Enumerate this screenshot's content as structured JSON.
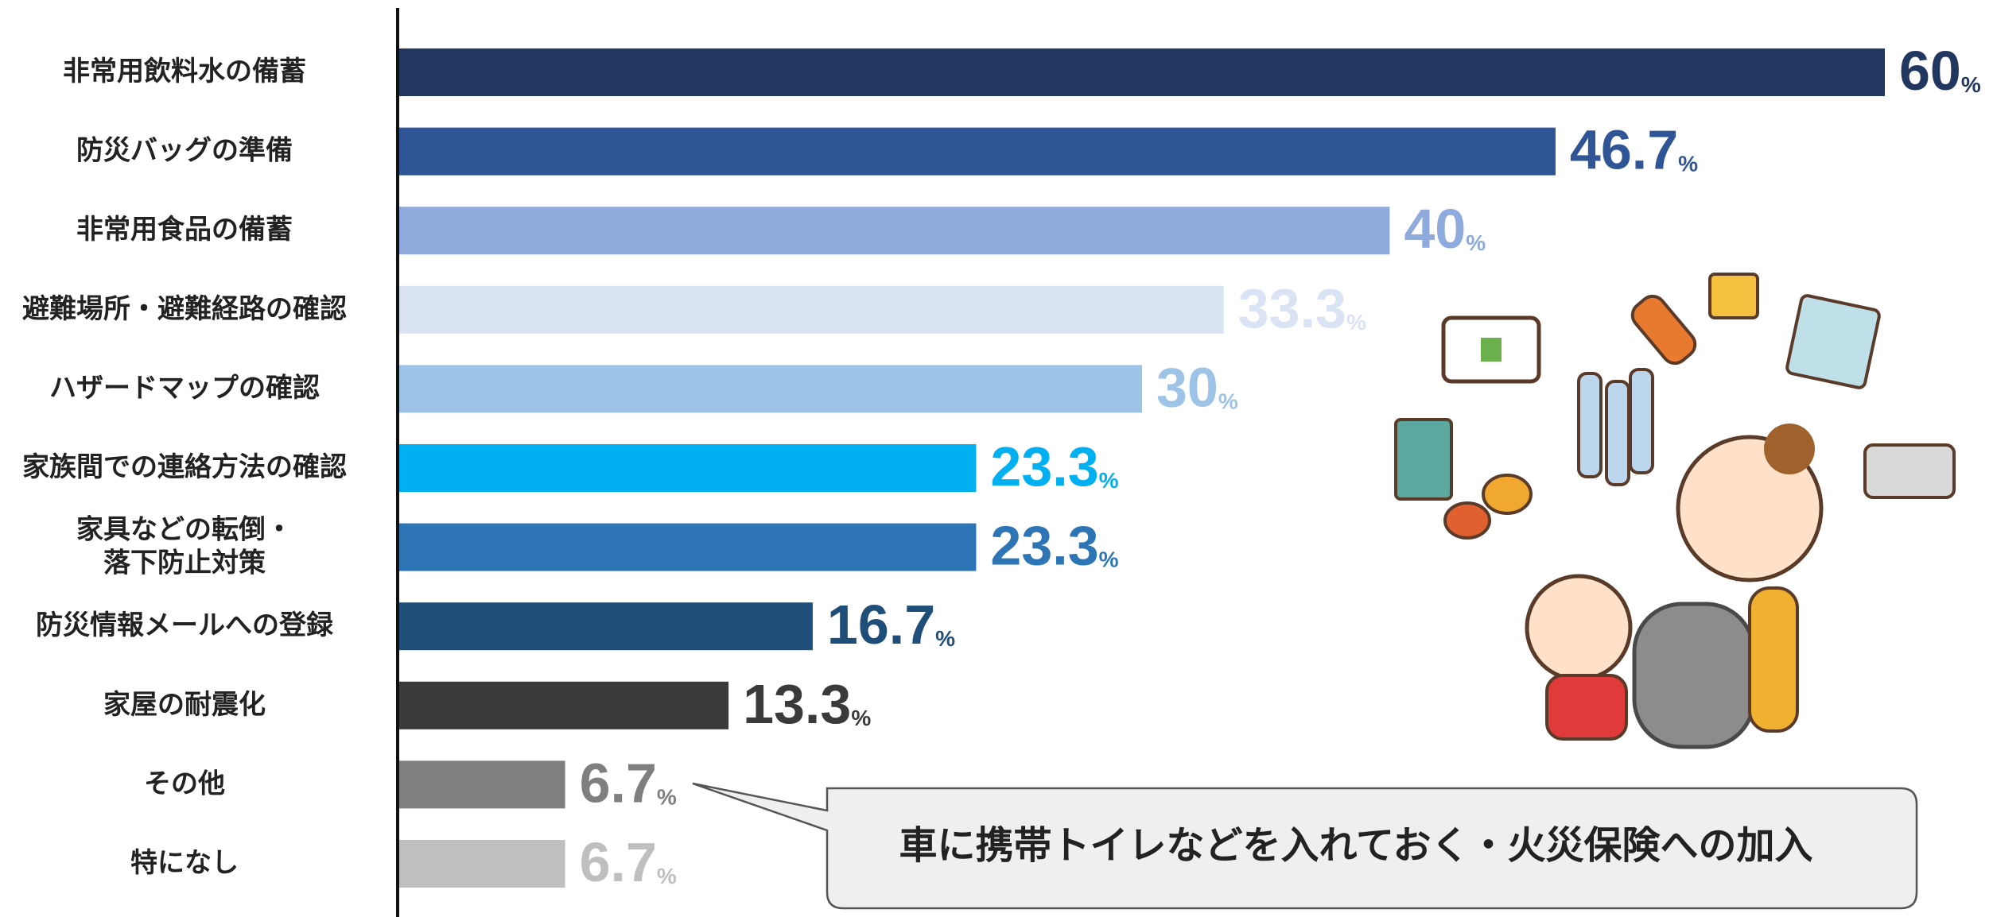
{
  "chart_data": {
    "type": "hbar",
    "categories": [
      "非常用飲料水の備蓄",
      "防災バッグの準備",
      "非常用食品の備蓄",
      "避難場所・避難経路の確認",
      "ハザードマップの確認",
      "家族間での連絡方法の確認",
      "家具などの転倒・\n落下防止対策",
      "防災情報メールへの登録",
      "家屋の耐震化",
      "その他",
      "特になし"
    ],
    "values": [
      60,
      46.7,
      40,
      33.3,
      30,
      23.3,
      23.3,
      16.7,
      13.3,
      6.7,
      6.7
    ],
    "value_labels": [
      "60%",
      "46.7%",
      "40%",
      "33.3%",
      "30%",
      "23.3%",
      "23.3%",
      "16.7%",
      "13.3%",
      "6.7%",
      "6.7%"
    ],
    "colors": [
      "#22375f",
      "#2f5597",
      "#8faadc",
      "#dae3f3",
      "#9dc3e6",
      "#00b0f0",
      "#2e75b6",
      "#1f4e79",
      "#3a3a3a",
      "#7f7f7f",
      "#bfbfbf"
    ],
    "xlim": [
      0,
      60
    ],
    "annotation": "車に携帯トイレなどを入れておく・火災保険への加入"
  }
}
